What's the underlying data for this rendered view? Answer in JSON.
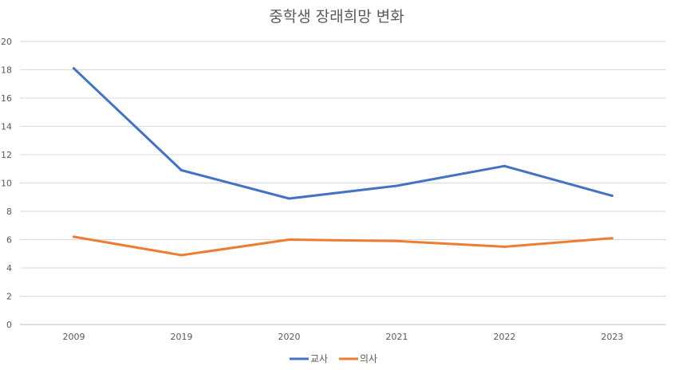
{
  "chart_data": {
    "type": "line",
    "title": "중학생 장래희망 변화",
    "xlabel": "",
    "ylabel": "",
    "categories": [
      "2009",
      "2019",
      "2020",
      "2021",
      "2022",
      "2023"
    ],
    "ylim": [
      0,
      20
    ],
    "yticks": [
      0,
      2,
      4,
      6,
      8,
      10,
      12,
      14,
      16,
      18,
      20
    ],
    "grid": true,
    "legend_position": "bottom",
    "series": [
      {
        "name": "교사",
        "color": "#4472c4",
        "values": [
          18.1,
          10.9,
          8.9,
          9.8,
          11.2,
          9.1
        ]
      },
      {
        "name": "의사",
        "color": "#ed7d31",
        "values": [
          6.2,
          4.9,
          6.0,
          5.9,
          5.5,
          6.1
        ]
      }
    ]
  }
}
